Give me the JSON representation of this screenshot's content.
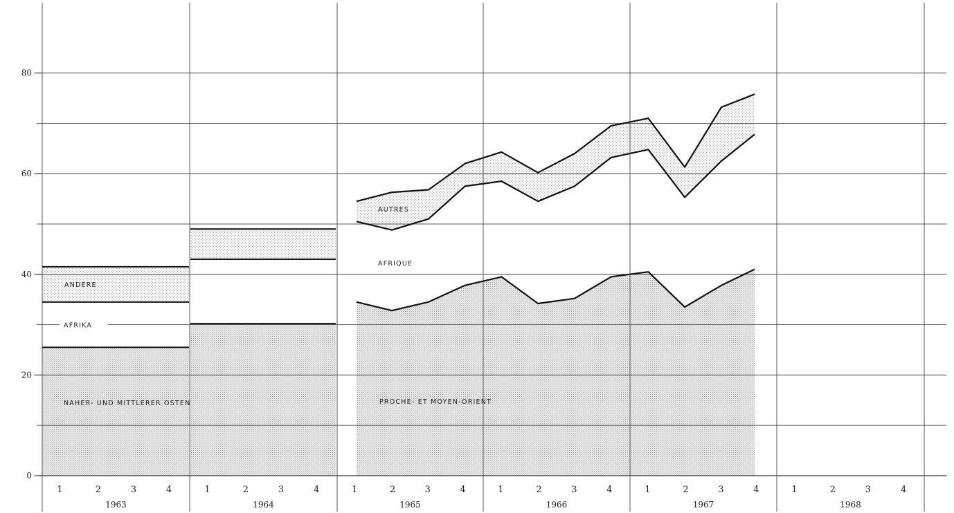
{
  "chart_data": {
    "type": "area",
    "title": "",
    "xlabel": "",
    "ylabel": "",
    "ylim": [
      0,
      90
    ],
    "yticks": [
      "0",
      "20",
      "40",
      "60",
      "80"
    ],
    "grid": true,
    "years": [
      "1963",
      "1964",
      "1965",
      "1966",
      "1967",
      "1968"
    ],
    "quarter_labels": [
      "1",
      "2",
      "3",
      "4"
    ],
    "annual_blocks": [
      {
        "year": "1963",
        "series": [
          {
            "name": "NAHER- UND MITTLERER OSTEN",
            "value": 25.5
          },
          {
            "name": "AFRIKA",
            "value": 34.5
          },
          {
            "name": "ANDERE",
            "value": 41.5
          }
        ]
      },
      {
        "year": "1964",
        "series": [
          {
            "name": "NAHER- UND MITTLERER OSTEN",
            "value": 30.2
          },
          {
            "name": "AFRIKA",
            "value": 43.0
          },
          {
            "name": "ANDERE",
            "value": 49.0
          }
        ]
      }
    ],
    "annual_labels": {
      "bottom": "NAHER- UND MITTLERER OSTEN",
      "middle": "AFRIKA",
      "top": "ANDERE"
    },
    "quarterly_labels": {
      "bottom": "PROCHE- ET MOYEN-ORIENT",
      "middle": "AFRIQUE",
      "top": "AUTRES"
    },
    "quarterly_x": [
      "1965-1",
      "1965-2",
      "1965-3",
      "1965-4",
      "1966-1",
      "1966-2",
      "1966-3",
      "1966-4",
      "1967-1",
      "1967-2",
      "1967-3",
      "1967-4"
    ],
    "series": [
      {
        "name": "PROCHE- ET MOYEN-ORIENT",
        "values": [
          34.5,
          32.8,
          34.5,
          37.8,
          39.5,
          34.2,
          35.2,
          39.5,
          40.5,
          33.5,
          37.8,
          41.0
        ]
      },
      {
        "name": "AFRIQUE",
        "values": [
          50.5,
          48.8,
          51.0,
          57.5,
          58.5,
          54.5,
          57.5,
          63.2,
          64.8,
          55.3,
          62.5,
          67.8
        ]
      },
      {
        "name": "AUTRES",
        "values": [
          54.5,
          56.3,
          56.8,
          62.0,
          64.3,
          60.2,
          64.0,
          69.5,
          71.0,
          61.3,
          73.2,
          75.8
        ]
      }
    ]
  }
}
